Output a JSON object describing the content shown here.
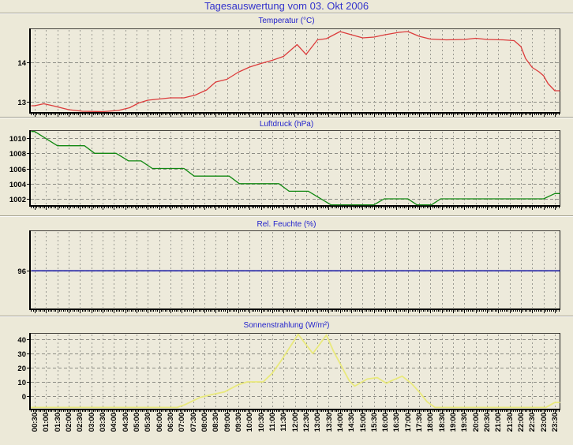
{
  "window": {
    "title": "Tagesauswertung vom 03. Okt 2006"
  },
  "colors": {
    "background": "#ECE9D8",
    "plot_background": "#EDEADB",
    "main_title_blue": "#3333CC",
    "chart_title_blue": "#2222CC",
    "grid_vertical": "#9A9A92",
    "grid_horizontal": "#8C8C84",
    "axis_black": "#000000",
    "temperature_line": "#DC3C3C",
    "pressure_line": "#118811",
    "humidity_line": "#0000A0",
    "solar_line": "#E9E97C"
  },
  "x_axis": {
    "first_hour": 0.5,
    "last_hour": 23.5,
    "tick_labels": [
      "00:30",
      "01:00",
      "01:30",
      "02:00",
      "02:30",
      "03:00",
      "03:30",
      "04:00",
      "04:30",
      "05:00",
      "05:30",
      "06:00",
      "06:30",
      "07:00",
      "07:30",
      "08:00",
      "08:30",
      "09:00",
      "09:30",
      "10:00",
      "10:30",
      "11:00",
      "11:30",
      "12:00",
      "12:30",
      "13:00",
      "13:30",
      "14:00",
      "14:30",
      "15:00",
      "15:30",
      "16:00",
      "16:30",
      "17:00",
      "17:30",
      "18:00",
      "18:30",
      "19:00",
      "19:30",
      "20:00",
      "20:30",
      "21:00",
      "21:30",
      "22:00",
      "22:30",
      "23:00",
      "23:30"
    ]
  },
  "chart_data": [
    {
      "type": "line",
      "title": "Temperatur (°C)",
      "unit": "°C",
      "color_key": "temperature_line",
      "yticks": [
        13,
        14
      ],
      "ylim": [
        12.74,
        14.84
      ],
      "points": [
        [
          0.5,
          12.9
        ],
        [
          0.9,
          12.95
        ],
        [
          1.3,
          12.9
        ],
        [
          2.0,
          12.8
        ],
        [
          2.6,
          12.76
        ],
        [
          3.5,
          12.75
        ],
        [
          4.2,
          12.78
        ],
        [
          4.7,
          12.85
        ],
        [
          5.1,
          12.97
        ],
        [
          5.5,
          13.04
        ],
        [
          6.0,
          13.07
        ],
        [
          6.5,
          13.1
        ],
        [
          7.1,
          13.1
        ],
        [
          7.6,
          13.17
        ],
        [
          8.1,
          13.3
        ],
        [
          8.5,
          13.5
        ],
        [
          9.0,
          13.57
        ],
        [
          9.5,
          13.75
        ],
        [
          10.0,
          13.88
        ],
        [
          10.5,
          13.97
        ],
        [
          11.0,
          14.05
        ],
        [
          11.5,
          14.15
        ],
        [
          12.1,
          14.45
        ],
        [
          12.5,
          14.2
        ],
        [
          13.0,
          14.57
        ],
        [
          13.4,
          14.6
        ],
        [
          14.0,
          14.78
        ],
        [
          14.5,
          14.7
        ],
        [
          15.0,
          14.62
        ],
        [
          15.5,
          14.64
        ],
        [
          16.0,
          14.7
        ],
        [
          16.6,
          14.76
        ],
        [
          17.0,
          14.78
        ],
        [
          17.5,
          14.66
        ],
        [
          18.0,
          14.59
        ],
        [
          18.7,
          14.57
        ],
        [
          19.5,
          14.58
        ],
        [
          20.0,
          14.61
        ],
        [
          20.5,
          14.58
        ],
        [
          21.2,
          14.57
        ],
        [
          21.7,
          14.55
        ],
        [
          22.0,
          14.4
        ],
        [
          22.2,
          14.1
        ],
        [
          22.5,
          13.87
        ],
        [
          22.8,
          13.76
        ],
        [
          23.0,
          13.66
        ],
        [
          23.2,
          13.46
        ],
        [
          23.5,
          13.28
        ]
      ]
    },
    {
      "type": "line",
      "title": "Luftdruck (hPa)",
      "unit": "hPa",
      "color_key": "pressure_line",
      "yticks": [
        1002,
        1004,
        1006,
        1008,
        1010
      ],
      "ylim": [
        1001.17,
        1010.94
      ],
      "points": [
        [
          0.5,
          1010.9
        ],
        [
          1.5,
          1009
        ],
        [
          2.7,
          1009
        ],
        [
          3.15,
          1008
        ],
        [
          4.1,
          1008
        ],
        [
          4.65,
          1007
        ],
        [
          5.2,
          1007
        ],
        [
          5.7,
          1006
        ],
        [
          7.1,
          1006
        ],
        [
          7.55,
          1005
        ],
        [
          9.1,
          1005
        ],
        [
          9.55,
          1004
        ],
        [
          11.3,
          1004
        ],
        [
          11.75,
          1003
        ],
        [
          12.6,
          1003
        ],
        [
          13.6,
          1001
        ],
        [
          15.5,
          1001
        ],
        [
          15.95,
          1002
        ],
        [
          17.0,
          1002
        ],
        [
          17.4,
          1001
        ],
        [
          18.05,
          1001
        ],
        [
          18.45,
          1002
        ],
        [
          23.0,
          1002
        ],
        [
          23.5,
          1002.7
        ]
      ]
    },
    {
      "type": "line",
      "title": "Rel. Feuchte (%)",
      "unit": "%",
      "color_key": "humidity_line",
      "yticks": [
        96
      ],
      "ylim": [
        94,
        98.1
      ],
      "points": [
        [
          0.5,
          96
        ],
        [
          23.5,
          96
        ]
      ]
    },
    {
      "type": "line",
      "title": "Sonnenstrahlung (W/m²)",
      "unit": "W/m²",
      "color_key": "solar_line",
      "yticks": [
        0,
        10,
        20,
        30,
        40
      ],
      "ylim": [
        -8.9,
        43.9
      ],
      "points": [
        [
          0.5,
          -8
        ],
        [
          6.8,
          -8
        ],
        [
          7.15,
          -6
        ],
        [
          7.8,
          -1
        ],
        [
          8.3,
          1
        ],
        [
          8.9,
          3
        ],
        [
          9.5,
          8
        ],
        [
          9.9,
          10
        ],
        [
          10.6,
          10
        ],
        [
          11.0,
          16
        ],
        [
          11.4,
          25
        ],
        [
          12.15,
          44
        ],
        [
          12.8,
          30
        ],
        [
          13.4,
          43
        ],
        [
          13.7,
          32
        ],
        [
          14.4,
          11
        ],
        [
          14.65,
          7
        ],
        [
          15.2,
          12
        ],
        [
          15.65,
          13
        ],
        [
          16.05,
          9
        ],
        [
          16.3,
          11
        ],
        [
          16.75,
          14
        ],
        [
          17.15,
          9
        ],
        [
          17.5,
          3
        ],
        [
          17.85,
          -4
        ],
        [
          18.2,
          -8
        ],
        [
          23.1,
          -8
        ],
        [
          23.5,
          -4.5
        ]
      ]
    }
  ]
}
